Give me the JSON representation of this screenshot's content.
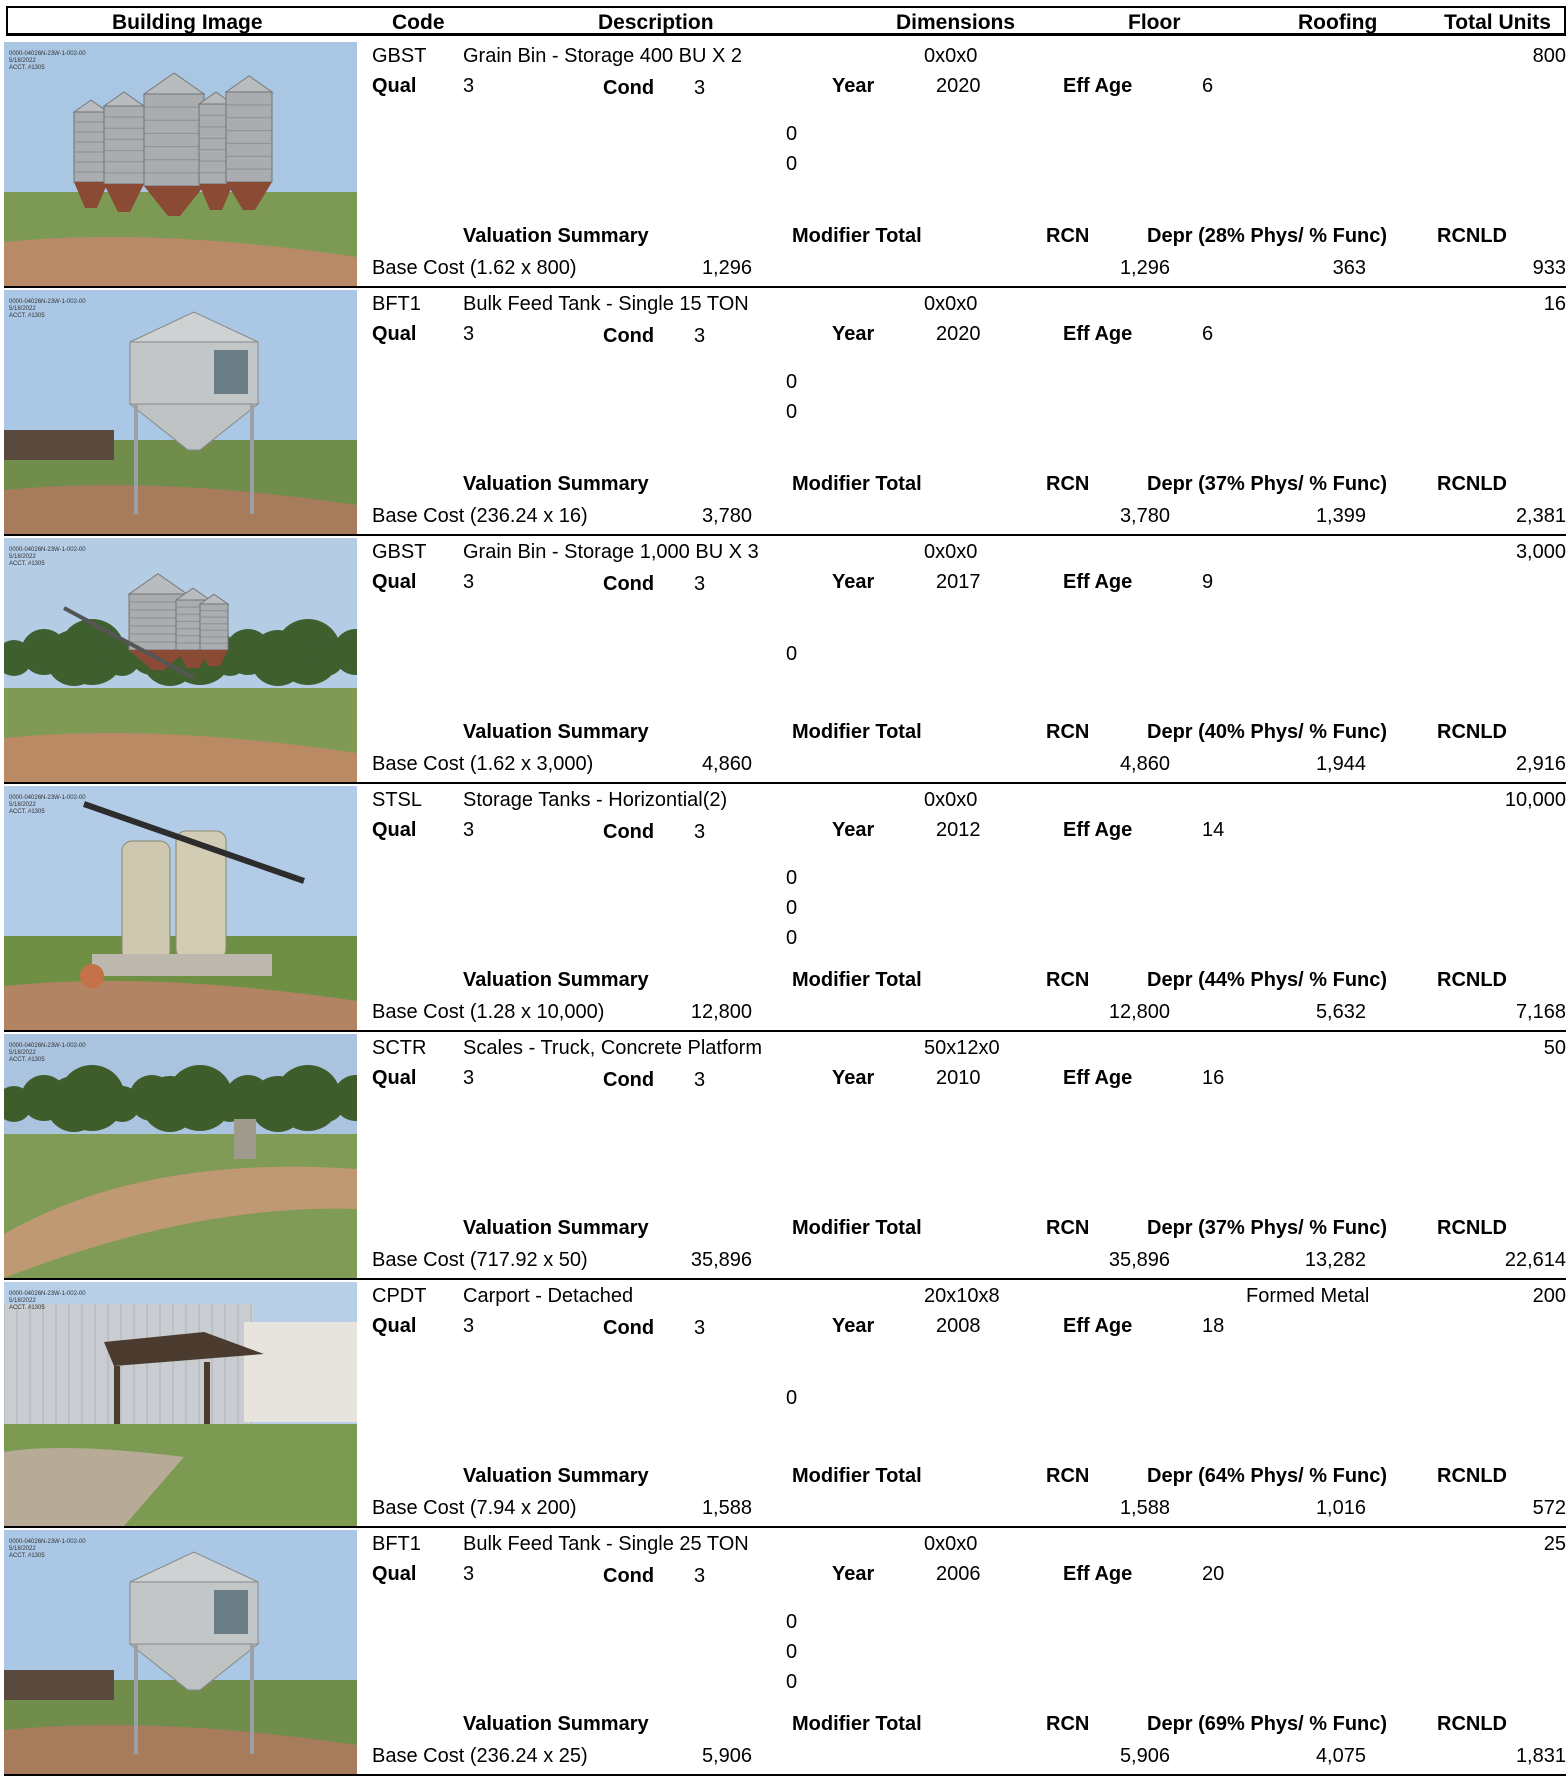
{
  "headers": {
    "building_image": "Building Image",
    "code": "Code",
    "description": "Description",
    "dimensions": "Dimensions",
    "floor": "Floor",
    "roofing": "Roofing",
    "total_units": "Total Units"
  },
  "labels": {
    "qual": "Qual",
    "cond": "Cond",
    "year": "Year",
    "eff_age": "Eff Age",
    "valuation_summary": "Valuation Summary",
    "modifier_total": "Modifier Total",
    "rcn": "RCN",
    "rcnld": "RCNLD"
  },
  "photo_stamp": "0000-04026N-23W-1-002-00\n5/18/2022\nACCT. #1305",
  "records": [
    {
      "code": "GBST",
      "description": "Grain Bin - Storage 400 BU X 2",
      "dimensions": "0x0x0",
      "roofing": "",
      "total_units": "800",
      "qual": "3",
      "cond": "3",
      "year": "2020",
      "eff_age": "6",
      "modifiers": [
        "0",
        "0"
      ],
      "depr_label": "Depr (28% Phys/ % Func)",
      "base_cost": "Base Cost (1.62 x 800)",
      "base_value": "1,296",
      "rcn": "1,296",
      "depr": "363",
      "rcnld": "933",
      "photo": "grain-bins-five"
    },
    {
      "code": "BFT1",
      "description": "Bulk Feed Tank - Single 15 TON",
      "dimensions": "0x0x0",
      "roofing": "",
      "total_units": "16",
      "qual": "3",
      "cond": "3",
      "year": "2020",
      "eff_age": "6",
      "modifiers": [
        "0",
        "0"
      ],
      "depr_label": "Depr (37% Phys/ % Func)",
      "base_cost": "Base Cost (236.24 x 16)",
      "base_value": "3,780",
      "rcn": "3,780",
      "depr": "1,399",
      "rcnld": "2,381",
      "photo": "bulk-feed-tank"
    },
    {
      "code": "GBST",
      "description": "Grain Bin - Storage 1,000 BU X 3",
      "dimensions": "0x0x0",
      "roofing": "",
      "total_units": "3,000",
      "qual": "3",
      "cond": "3",
      "year": "2017",
      "eff_age": "9",
      "modifiers": [
        "0"
      ],
      "depr_label": "Depr (40% Phys/ % Func)",
      "base_cost": "Base Cost (1.62 x 3,000)",
      "base_value": "4,860",
      "rcn": "4,860",
      "depr": "1,944",
      "rcnld": "2,916",
      "photo": "grain-bins-three"
    },
    {
      "code": "STSL",
      "description": "Storage Tanks - Horizontial(2)",
      "dimensions": "0x0x0",
      "roofing": "",
      "total_units": "10,000",
      "qual": "3",
      "cond": "3",
      "year": "2012",
      "eff_age": "14",
      "modifiers": [
        "0",
        "0",
        "0"
      ],
      "depr_label": "Depr (44% Phys/ % Func)",
      "base_cost": "Base Cost (1.28 x 10,000)",
      "base_value": "12,800",
      "rcn": "12,800",
      "depr": "5,632",
      "rcnld": "7,168",
      "photo": "storage-tanks"
    },
    {
      "code": "SCTR",
      "description": "Scales - Truck, Concrete Platform",
      "dimensions": "50x12x0",
      "roofing": "",
      "total_units": "50",
      "qual": "3",
      "cond": "3",
      "year": "2010",
      "eff_age": "16",
      "modifiers": [],
      "depr_label": "Depr (37% Phys/ % Func)",
      "base_cost": "Base Cost (717.92 x 50)",
      "base_value": "35,896",
      "rcn": "35,896",
      "depr": "13,282",
      "rcnld": "22,614",
      "photo": "truck-scale"
    },
    {
      "code": "CPDT",
      "description": "Carport - Detached",
      "dimensions": "20x10x8",
      "roofing": "Formed Metal",
      "total_units": "200",
      "qual": "3",
      "cond": "3",
      "year": "2008",
      "eff_age": "18",
      "modifiers": [
        "0"
      ],
      "depr_label": "Depr (64% Phys/ % Func)",
      "base_cost": "Base Cost (7.94 x 200)",
      "base_value": "1,588",
      "rcn": "1,588",
      "depr": "1,016",
      "rcnld": "572",
      "photo": "carport"
    },
    {
      "code": "BFT1",
      "description": "Bulk Feed Tank - Single 25 TON",
      "dimensions": "0x0x0",
      "roofing": "",
      "total_units": "25",
      "qual": "3",
      "cond": "3",
      "year": "2006",
      "eff_age": "20",
      "modifiers": [
        "0",
        "0",
        "0"
      ],
      "depr_label": "Depr (69% Phys/ % Func)",
      "base_cost": "Base Cost (236.24 x 25)",
      "base_value": "5,906",
      "rcn": "5,906",
      "depr": "4,075",
      "rcnld": "1,831",
      "photo": "bulk-feed-tank"
    }
  ]
}
